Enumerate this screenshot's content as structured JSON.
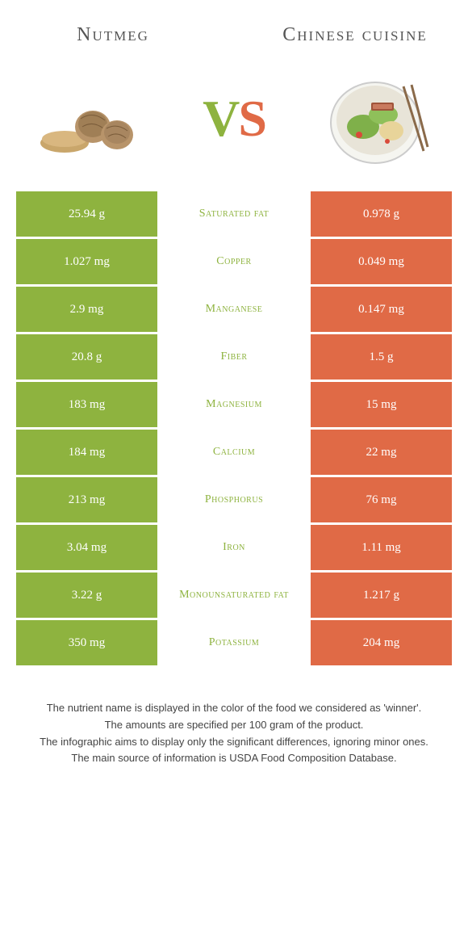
{
  "left_title": "Nutmeg",
  "right_title": "Chinese cuisine",
  "vs_v": "V",
  "vs_s": "S",
  "colors": {
    "left": "#8eb33f",
    "right": "#e06a46",
    "mid_bg": "#ffffff"
  },
  "rows": [
    {
      "left": "25.94 g",
      "label": "Saturated fat",
      "right": "0.978 g",
      "winner": "left"
    },
    {
      "left": "1.027 mg",
      "label": "Copper",
      "right": "0.049 mg",
      "winner": "left"
    },
    {
      "left": "2.9 mg",
      "label": "Manganese",
      "right": "0.147 mg",
      "winner": "left"
    },
    {
      "left": "20.8 g",
      "label": "Fiber",
      "right": "1.5 g",
      "winner": "left"
    },
    {
      "left": "183 mg",
      "label": "Magnesium",
      "right": "15 mg",
      "winner": "left"
    },
    {
      "left": "184 mg",
      "label": "Calcium",
      "right": "22 mg",
      "winner": "left"
    },
    {
      "left": "213 mg",
      "label": "Phosphorus",
      "right": "76 mg",
      "winner": "left"
    },
    {
      "left": "3.04 mg",
      "label": "Iron",
      "right": "1.11 mg",
      "winner": "left"
    },
    {
      "left": "3.22 g",
      "label": "Monounsaturated fat",
      "right": "1.217 g",
      "winner": "left"
    },
    {
      "left": "350 mg",
      "label": "Potassium",
      "right": "204 mg",
      "winner": "left"
    }
  ],
  "footer": [
    "The nutrient name is displayed in the color of the food we considered as 'winner'.",
    "The amounts are specified per 100 gram of the product.",
    "The infographic aims to display only the significant differences, ignoring minor ones.",
    "The main source of information is USDA Food Composition Database."
  ]
}
